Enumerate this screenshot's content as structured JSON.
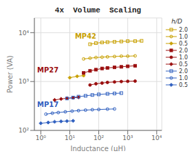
{
  "chart_data": {
    "type": "line",
    "title": "4x  Volume  Scaling",
    "x_label": "Inductance (μH)",
    "y_label": "Power (VA)",
    "log": true,
    "grid": true,
    "legend": "right",
    "legend_title": "h/D",
    "xlim": [
      0.6,
      15000
    ],
    "xticks": [
      {
        "value": 1,
        "label": "10⁰"
      },
      {
        "value": 10,
        "label": "10¹"
      },
      {
        "value": 100,
        "label": "10²"
      },
      {
        "value": 1000,
        "label": "10³"
      },
      {
        "value": 10000,
        "label": "10⁴"
      }
    ],
    "ylim": [
      100,
      20000
    ],
    "yticks": [
      {
        "value": 100,
        "label": "10²"
      },
      {
        "value": 1000,
        "label": "10³"
      },
      {
        "value": 10000,
        "label": "10⁴"
      }
    ],
    "series": [
      {
        "name": "2.0",
        "color": "#C8A000",
        "marker": "square_open",
        "x": [
          50,
          80,
          130,
          200,
          350,
          600,
          1000,
          1800,
          3000
        ],
        "values": [
          5800,
          6100,
          6300,
          6400,
          6500,
          6600,
          6700,
          6700,
          6800
        ]
      },
      {
        "name": "1.0",
        "color": "#C8A000",
        "marker": "circle_open",
        "x": [
          30,
          50,
          80,
          130,
          200,
          350,
          600,
          1000,
          1800
        ],
        "values": [
          2900,
          3000,
          3100,
          3150,
          3200,
          3250,
          3300,
          3300,
          3350
        ]
      },
      {
        "name": "0.5",
        "color": "#C8A000",
        "marker": "diamond",
        "x": [
          10,
          18,
          30
        ],
        "values": [
          1200,
          1280,
          1320
        ]
      },
      {
        "name": "2.0",
        "color": "#9B1010",
        "marker": "square",
        "x": [
          30,
          50,
          80,
          130,
          200,
          350,
          600,
          1000,
          1800
        ],
        "values": [
          1500,
          1650,
          1750,
          1850,
          1900,
          1950,
          2000,
          2050,
          2100
        ]
      },
      {
        "name": "1.0",
        "color": "#9B1010",
        "marker": "circle",
        "x": [
          50,
          80,
          130,
          200,
          350,
          600,
          1000,
          1800
        ],
        "values": [
          850,
          900,
          930,
          960,
          980,
          1000,
          1010,
          1020
        ]
      },
      {
        "name": "0.5",
        "color": "#9B1010",
        "marker": "diamond",
        "x": [
          3,
          5,
          8,
          13,
          20
        ],
        "values": [
          420,
          440,
          455,
          465,
          475
        ]
      },
      {
        "name": "2.0",
        "color": "#3060C0",
        "marker": "square_open",
        "x": [
          8,
          13,
          20,
          35,
          60,
          100,
          200,
          350,
          600
        ],
        "values": [
          450,
          470,
          490,
          510,
          530,
          545,
          560,
          570,
          580
        ]
      },
      {
        "name": "1.0",
        "color": "#3060C0",
        "marker": "circle_open",
        "x": [
          1.5,
          2.5,
          4,
          7,
          12,
          20,
          35,
          60,
          100,
          200,
          350
        ],
        "values": [
          215,
          225,
          232,
          240,
          248,
          254,
          260,
          265,
          268,
          272,
          275
        ]
      },
      {
        "name": "0.5",
        "color": "#3060C0",
        "marker": "diamond",
        "x": [
          1.0,
          1.8,
          3,
          5,
          8,
          13
        ],
        "values": [
          140,
          145,
          150,
          153,
          155,
          157
        ]
      }
    ],
    "annotations": [
      {
        "text": "MP42",
        "x": 15,
        "y": 7500,
        "color": "#C8A000"
      },
      {
        "text": "MP27",
        "x": 0.75,
        "y": 1550,
        "color": "#9B1010"
      },
      {
        "text": "MP17",
        "x": 0.75,
        "y": 300,
        "color": "#3060C0"
      }
    ]
  }
}
